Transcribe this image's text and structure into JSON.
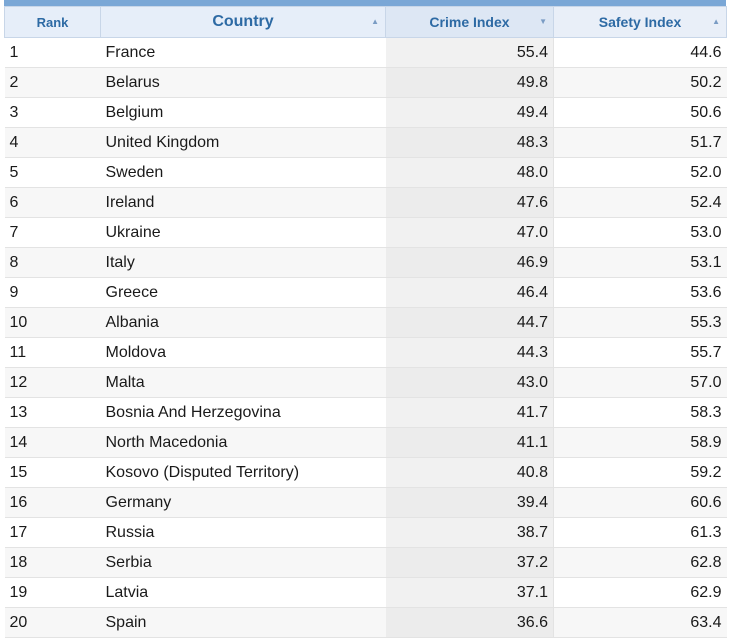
{
  "table": {
    "headers": {
      "rank": "Rank",
      "country": "Country",
      "crime": "Crime Index",
      "safety": "Safety Index"
    },
    "sort_icons": {
      "country": "▲",
      "crime": "▼",
      "safety": "▲"
    },
    "rows": [
      {
        "rank": "1",
        "country": "France",
        "crime": "55.4",
        "safety": "44.6"
      },
      {
        "rank": "2",
        "country": "Belarus",
        "crime": "49.8",
        "safety": "50.2"
      },
      {
        "rank": "3",
        "country": "Belgium",
        "crime": "49.4",
        "safety": "50.6"
      },
      {
        "rank": "4",
        "country": "United Kingdom",
        "crime": "48.3",
        "safety": "51.7"
      },
      {
        "rank": "5",
        "country": "Sweden",
        "crime": "48.0",
        "safety": "52.0"
      },
      {
        "rank": "6",
        "country": "Ireland",
        "crime": "47.6",
        "safety": "52.4"
      },
      {
        "rank": "7",
        "country": "Ukraine",
        "crime": "47.0",
        "safety": "53.0"
      },
      {
        "rank": "8",
        "country": "Italy",
        "crime": "46.9",
        "safety": "53.1"
      },
      {
        "rank": "9",
        "country": "Greece",
        "crime": "46.4",
        "safety": "53.6"
      },
      {
        "rank": "10",
        "country": "Albania",
        "crime": "44.7",
        "safety": "55.3"
      },
      {
        "rank": "11",
        "country": "Moldova",
        "crime": "44.3",
        "safety": "55.7"
      },
      {
        "rank": "12",
        "country": "Malta",
        "crime": "43.0",
        "safety": "57.0"
      },
      {
        "rank": "13",
        "country": "Bosnia And Herzegovina",
        "crime": "41.7",
        "safety": "58.3"
      },
      {
        "rank": "14",
        "country": "North Macedonia",
        "crime": "41.1",
        "safety": "58.9"
      },
      {
        "rank": "15",
        "country": "Kosovo (Disputed Territory)",
        "crime": "40.8",
        "safety": "59.2"
      },
      {
        "rank": "16",
        "country": "Germany",
        "crime": "39.4",
        "safety": "60.6"
      },
      {
        "rank": "17",
        "country": "Russia",
        "crime": "38.7",
        "safety": "61.3"
      },
      {
        "rank": "18",
        "country": "Serbia",
        "crime": "37.2",
        "safety": "62.8"
      },
      {
        "rank": "19",
        "country": "Latvia",
        "crime": "37.1",
        "safety": "62.9"
      },
      {
        "rank": "20",
        "country": "Spain",
        "crime": "36.6",
        "safety": "63.4"
      }
    ]
  }
}
